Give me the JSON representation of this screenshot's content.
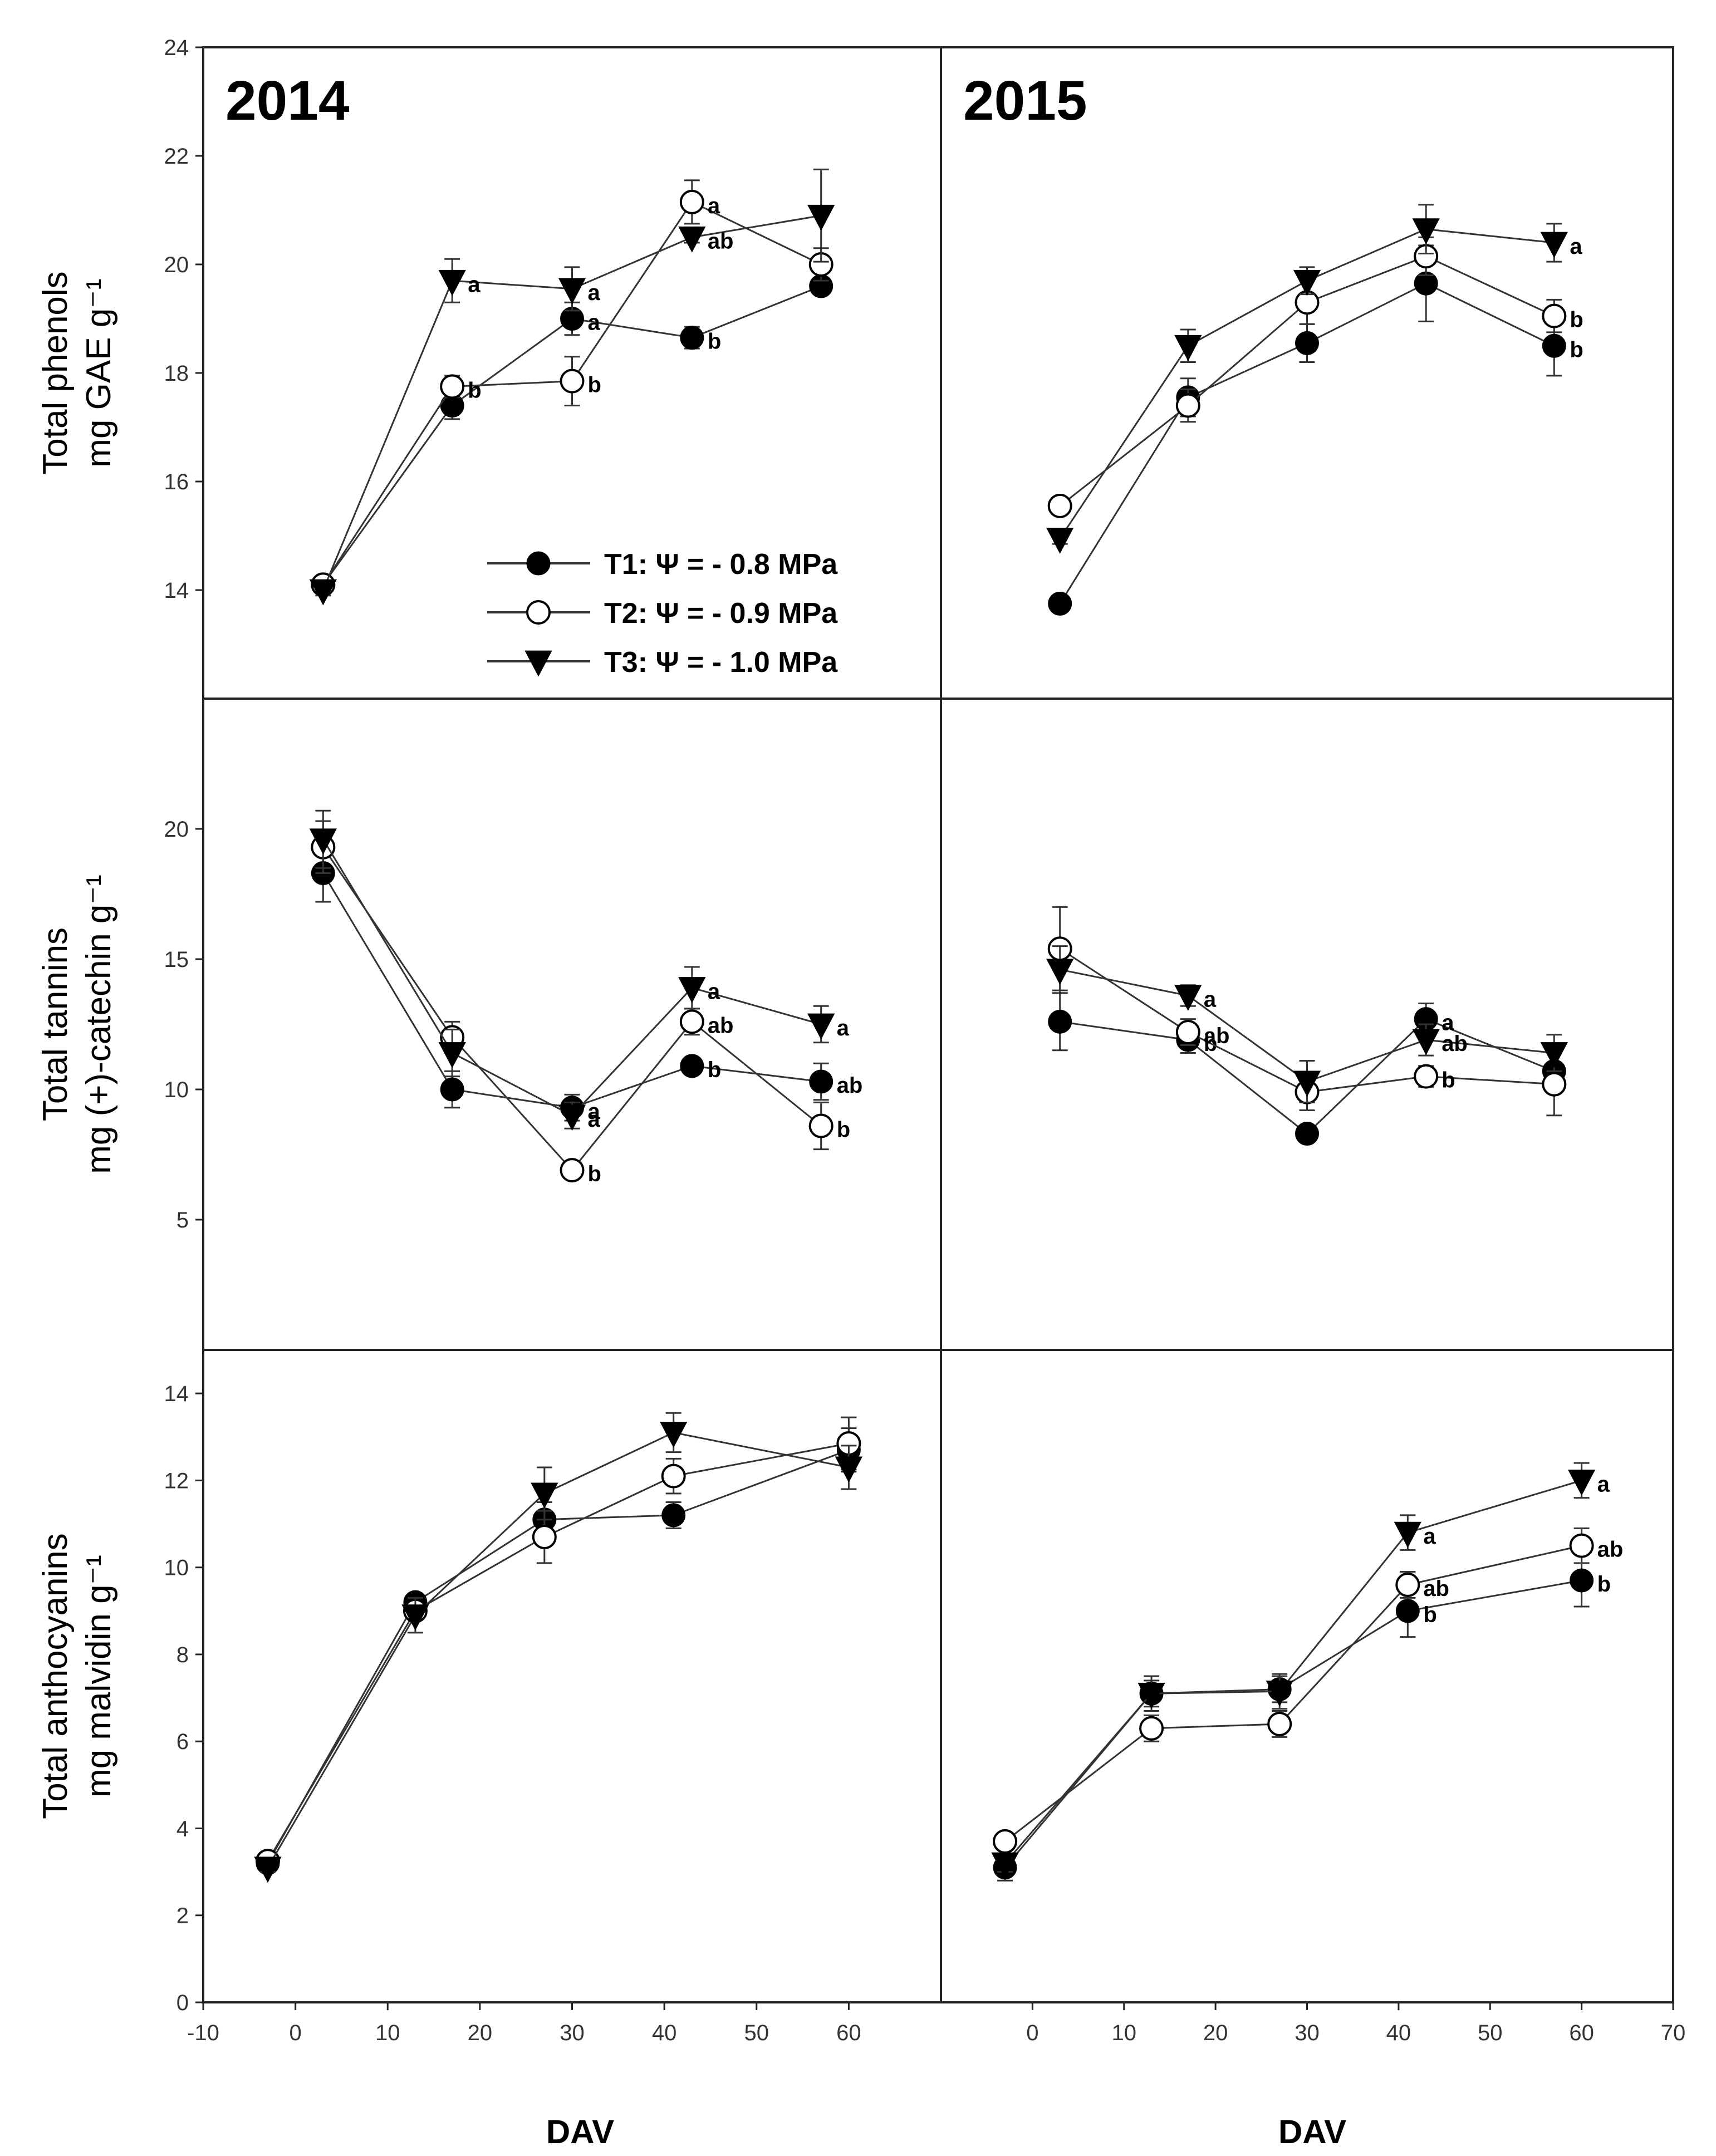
{
  "legend": [
    {
      "label": "T1: Ψ = - 0.8 MPa",
      "marker": "filled-circle"
    },
    {
      "label": "T2: Ψ = - 0.9 MPa",
      "marker": "open-circle"
    },
    {
      "label": "T3: Ψ = - 1.0 MPa",
      "marker": "filled-triangle-down"
    }
  ],
  "xlabel": "DAV",
  "years": [
    "2014",
    "2015"
  ],
  "xlim": [
    -10,
    70
  ],
  "xticks_left": [
    -10,
    0,
    10,
    20,
    30,
    40,
    50,
    60
  ],
  "xticks_right": [
    0,
    10,
    20,
    30,
    40,
    50,
    60,
    70
  ],
  "chart_data": [
    {
      "type": "line",
      "panel": "phenols-2014",
      "year": "2014",
      "ylabel": [
        "Total phenols",
        "mg GAE g⁻¹"
      ],
      "ylim": [
        12,
        24
      ],
      "yticks": [
        14,
        16,
        18,
        20,
        22,
        24
      ],
      "series": [
        {
          "name": "T1: Ψ = - 0.8 MPa",
          "x": [
            3,
            17,
            30,
            43,
            57
          ],
          "y": [
            14.1,
            17.4,
            19.0,
            18.65,
            19.6
          ],
          "err": [
            0.1,
            0.25,
            0.3,
            0.2,
            0.15
          ],
          "labels": [
            "",
            "",
            "a",
            "b",
            ""
          ]
        },
        {
          "name": "T2: Ψ = - 0.9 MPa",
          "x": [
            3,
            17,
            30,
            43,
            57
          ],
          "y": [
            14.1,
            17.75,
            17.85,
            21.15,
            20.0
          ],
          "err": [
            0.1,
            0.2,
            0.45,
            0.4,
            0.3
          ],
          "labels": [
            "",
            "b",
            "b",
            "a",
            ""
          ]
        },
        {
          "name": "T3: Ψ = - 1.0 MPa",
          "x": [
            3,
            17,
            30,
            43,
            57
          ],
          "y": [
            14.0,
            19.7,
            19.55,
            20.5,
            20.9
          ],
          "err": [
            0.1,
            0.4,
            0.4,
            0.1,
            0.85
          ],
          "labels": [
            "",
            "a",
            "a",
            "ab",
            ""
          ]
        }
      ]
    },
    {
      "type": "line",
      "panel": "phenols-2015",
      "year": "2015",
      "ylim": [
        12,
        24
      ],
      "yticks": [
        14,
        16,
        18,
        20,
        22,
        24
      ],
      "series": [
        {
          "name": "T1: Ψ = - 0.8 MPa",
          "x": [
            3,
            17,
            30,
            43,
            57
          ],
          "y": [
            13.75,
            17.55,
            18.55,
            19.65,
            18.5
          ],
          "err": [
            0.1,
            0.35,
            0.35,
            0.7,
            0.55
          ],
          "labels": [
            "",
            "",
            "",
            "",
            "b"
          ]
        },
        {
          "name": "T2: Ψ = - 0.9 MPa",
          "x": [
            3,
            17,
            30,
            43,
            57
          ],
          "y": [
            15.55,
            17.4,
            19.3,
            20.15,
            19.05
          ],
          "err": [
            0.1,
            0.3,
            0.4,
            0.35,
            0.3
          ],
          "labels": [
            "",
            "",
            "",
            "",
            "b"
          ]
        },
        {
          "name": "T3: Ψ = - 1.0 MPa",
          "x": [
            3,
            17,
            30,
            43,
            57
          ],
          "y": [
            14.95,
            18.5,
            19.7,
            20.65,
            20.4
          ],
          "err": [
            0.1,
            0.3,
            0.25,
            0.45,
            0.35
          ],
          "labels": [
            "",
            "",
            "",
            "",
            "a"
          ]
        }
      ]
    },
    {
      "type": "line",
      "panel": "tannins-2014",
      "year": "2014",
      "ylabel": [
        "Total tannins",
        "mg (+)-catechin g⁻¹"
      ],
      "ylim": [
        0,
        25
      ],
      "yticks": [
        5,
        10,
        15,
        20
      ],
      "series": [
        {
          "name": "T1: Ψ = - 0.8 MPa",
          "x": [
            3,
            17,
            30,
            43,
            57
          ],
          "y": [
            18.3,
            10.0,
            9.3,
            10.9,
            10.3
          ],
          "err": [
            1.1,
            0.7,
            0.5,
            0.3,
            0.7
          ],
          "labels": [
            "",
            "",
            "a",
            "b",
            "ab"
          ]
        },
        {
          "name": "T2: Ψ = - 0.9 MPa",
          "x": [
            3,
            17,
            30,
            43,
            57
          ],
          "y": [
            19.3,
            12.0,
            6.9,
            12.6,
            8.6
          ],
          "err": [
            1.0,
            0.6,
            0.3,
            0.5,
            0.9
          ],
          "labels": [
            "",
            "",
            "b",
            "ab",
            "b"
          ]
        },
        {
          "name": "T3: Ψ = - 1.0 MPa",
          "x": [
            3,
            17,
            30,
            43,
            57
          ],
          "y": [
            19.6,
            11.4,
            9.0,
            13.9,
            12.5
          ],
          "err": [
            1.1,
            0.9,
            0.5,
            0.8,
            0.7
          ],
          "labels": [
            "",
            "",
            "a",
            "a",
            "a"
          ]
        }
      ]
    },
    {
      "type": "line",
      "panel": "tannins-2015",
      "year": "2015",
      "ylim": [
        0,
        25
      ],
      "yticks": [
        5,
        10,
        15,
        20
      ],
      "series": [
        {
          "name": "T1: Ψ = - 0.8 MPa",
          "x": [
            3,
            17,
            30,
            43,
            57
          ],
          "y": [
            12.6,
            11.9,
            8.3,
            12.7,
            10.7
          ],
          "err": [
            1.1,
            0.5,
            0.3,
            0.6,
            0.8
          ],
          "labels": [
            "",
            "b",
            "",
            "a",
            ""
          ]
        },
        {
          "name": "T2: Ψ = - 0.9 MPa",
          "x": [
            3,
            17,
            30,
            43,
            57
          ],
          "y": [
            15.4,
            12.2,
            9.9,
            10.5,
            10.2
          ],
          "err": [
            1.6,
            0.5,
            0.7,
            0.4,
            1.2
          ],
          "labels": [
            "",
            "ab",
            "",
            "b",
            ""
          ]
        },
        {
          "name": "T3: Ψ = - 1.0 MPa",
          "x": [
            3,
            17,
            30,
            43,
            57
          ],
          "y": [
            14.6,
            13.6,
            10.3,
            11.9,
            11.4
          ],
          "err": [
            0.9,
            0.4,
            0.8,
            0.6,
            0.7
          ],
          "labels": [
            "",
            "a",
            "",
            "ab",
            ""
          ]
        }
      ]
    },
    {
      "type": "line",
      "panel": "anthocyanins-2014",
      "year": "2014",
      "ylabel": [
        "Total anthocyanins",
        "mg malvidin g⁻¹"
      ],
      "ylim": [
        0,
        15
      ],
      "yticks": [
        0,
        2,
        4,
        6,
        8,
        10,
        12,
        14
      ],
      "series": [
        {
          "name": "T1: Ψ = - 0.8 MPa",
          "x": [
            -3,
            13,
            27,
            41,
            60
          ],
          "y": [
            3.2,
            9.2,
            11.1,
            11.2,
            12.7
          ],
          "err": [
            0.1,
            0.2,
            0.4,
            0.3,
            0.5
          ],
          "labels": [
            "",
            "",
            "",
            "",
            ""
          ]
        },
        {
          "name": "T2: Ψ = - 0.9 MPa",
          "x": [
            -3,
            13,
            27,
            41,
            60
          ],
          "y": [
            3.25,
            9.0,
            10.7,
            12.1,
            12.85
          ],
          "err": [
            0.1,
            0.2,
            0.6,
            0.4,
            0.6
          ],
          "labels": [
            "",
            "",
            "",
            "",
            ""
          ]
        },
        {
          "name": "T3: Ψ = - 1.0 MPa",
          "x": [
            -3,
            13,
            27,
            41,
            60
          ],
          "y": [
            3.1,
            8.9,
            11.7,
            13.1,
            12.3
          ],
          "err": [
            0.1,
            0.4,
            0.6,
            0.45,
            0.5
          ],
          "labels": [
            "",
            "",
            "",
            "",
            ""
          ]
        }
      ]
    },
    {
      "type": "line",
      "panel": "anthocyanins-2015",
      "year": "2015",
      "ylim": [
        0,
        15
      ],
      "yticks": [
        0,
        2,
        4,
        6,
        8,
        10,
        12,
        14
      ],
      "series": [
        {
          "name": "T1: Ψ = - 0.8 MPa",
          "x": [
            -3,
            13,
            27,
            41,
            60
          ],
          "y": [
            3.1,
            7.1,
            7.2,
            9.0,
            9.7
          ],
          "err": [
            0.3,
            0.3,
            0.3,
            0.6,
            0.6
          ],
          "labels": [
            "",
            "",
            "",
            "b",
            "b"
          ]
        },
        {
          "name": "T2: Ψ = - 0.9 MPa",
          "x": [
            -3,
            13,
            27,
            41,
            60
          ],
          "y": [
            3.7,
            6.3,
            6.4,
            9.6,
            10.5
          ],
          "err": [
            0.1,
            0.3,
            0.3,
            0.3,
            0.4
          ],
          "labels": [
            "",
            "",
            "",
            "ab",
            "ab"
          ]
        },
        {
          "name": "T3: Ψ = - 1.0 MPa",
          "x": [
            -3,
            13,
            27,
            41,
            60
          ],
          "y": [
            3.2,
            7.1,
            7.15,
            10.8,
            12.0
          ],
          "err": [
            0.2,
            0.4,
            0.4,
            0.4,
            0.4
          ],
          "labels": [
            "",
            "",
            "",
            "a",
            "a"
          ]
        }
      ]
    }
  ]
}
